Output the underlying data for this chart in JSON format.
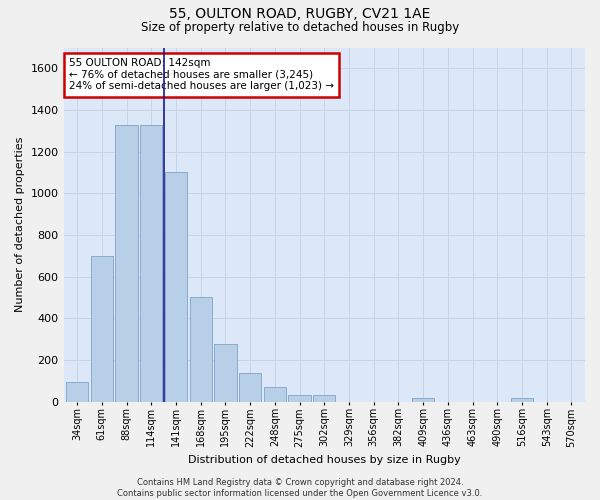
{
  "title_line1": "55, OULTON ROAD, RUGBY, CV21 1AE",
  "title_line2": "Size of property relative to detached houses in Rugby",
  "xlabel": "Distribution of detached houses by size in Rugby",
  "ylabel": "Number of detached properties",
  "categories": [
    "34sqm",
    "61sqm",
    "88sqm",
    "114sqm",
    "141sqm",
    "168sqm",
    "195sqm",
    "222sqm",
    "248sqm",
    "275sqm",
    "302sqm",
    "329sqm",
    "356sqm",
    "382sqm",
    "409sqm",
    "436sqm",
    "463sqm",
    "490sqm",
    "516sqm",
    "543sqm",
    "570sqm"
  ],
  "values": [
    95,
    700,
    1330,
    1330,
    1100,
    500,
    275,
    135,
    70,
    32,
    32,
    0,
    0,
    0,
    15,
    0,
    0,
    0,
    15,
    0,
    0
  ],
  "bar_color": "#b8cfe8",
  "bar_edge_color": "#7098c0",
  "highlight_line_color": "#1a1a8c",
  "vline_x": 3.5,
  "annotation_text": "55 OULTON ROAD: 142sqm\n← 76% of detached houses are smaller (3,245)\n24% of semi-detached houses are larger (1,023) →",
  "annotation_box_color": "#ffffff",
  "annotation_border_color": "#cc0000",
  "ylim": [
    0,
    1700
  ],
  "yticks": [
    0,
    200,
    400,
    600,
    800,
    1000,
    1200,
    1400,
    1600
  ],
  "grid_color": "#c8d4e4",
  "plot_bg_color": "#dce8f8",
  "fig_bg_color": "#f0f0f0",
  "footnote": "Contains HM Land Registry data © Crown copyright and database right 2024.\nContains public sector information licensed under the Open Government Licence v3.0."
}
